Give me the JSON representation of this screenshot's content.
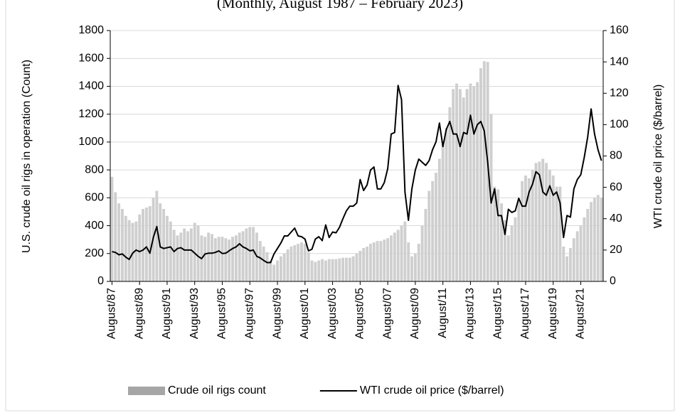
{
  "chart_data": {
    "type": "bar+line",
    "subtitle": "(Monthly, August 1987 – February 2023)",
    "y_label": "U.S. crude oil rigs in operation (Count)",
    "y2_label": "WTI crude oil price ($/barrel)",
    "categories": [
      "August/87",
      null,
      null,
      null,
      null,
      null,
      null,
      null,
      "August/89",
      null,
      null,
      null,
      null,
      null,
      null,
      null,
      "August/91",
      null,
      null,
      null,
      null,
      null,
      null,
      null,
      "August/93",
      null,
      null,
      null,
      null,
      null,
      null,
      null,
      "August/95",
      null,
      null,
      null,
      null,
      null,
      null,
      null,
      "August/97",
      null,
      null,
      null,
      null,
      null,
      null,
      null,
      "August/99",
      null,
      null,
      null,
      null,
      null,
      null,
      null,
      "August/01",
      null,
      null,
      null,
      null,
      null,
      null,
      null,
      "August/03",
      null,
      null,
      null,
      null,
      null,
      null,
      null,
      "August/05",
      null,
      null,
      null,
      null,
      null,
      null,
      null,
      "August/07",
      null,
      null,
      null,
      null,
      null,
      null,
      null,
      "August/09",
      null,
      null,
      null,
      null,
      null,
      null,
      null,
      "August/11",
      null,
      null,
      null,
      null,
      null,
      null,
      null,
      "August/13",
      null,
      null,
      null,
      null,
      null,
      null,
      null,
      "August/15",
      null,
      null,
      null,
      null,
      null,
      null,
      null,
      "August/17",
      null,
      null,
      null,
      null,
      null,
      null,
      null,
      "August/19",
      null,
      null,
      null,
      null,
      null,
      null,
      null,
      "August/21",
      null,
      null,
      null,
      null,
      null,
      null
    ],
    "series": [
      {
        "name": "Crude oil rigs count",
        "type": "bar",
        "color": "#cfcfcf",
        "values": [
          750,
          640,
          560,
          520,
          470,
          440,
          420,
          430,
          480,
          520,
          530,
          540,
          600,
          650,
          560,
          520,
          470,
          430,
          370,
          330,
          350,
          380,
          360,
          380,
          420,
          400,
          330,
          320,
          350,
          340,
          310,
          320,
          320,
          310,
          300,
          320,
          330,
          350,
          360,
          380,
          390,
          390,
          350,
          290,
          250,
          210,
          150,
          120,
          150,
          180,
          200,
          230,
          250,
          260,
          270,
          280,
          270,
          210,
          150,
          140,
          150,
          160,
          150,
          160,
          160,
          160,
          165,
          170,
          170,
          170,
          180,
          200,
          220,
          240,
          250,
          270,
          280,
          290,
          290,
          300,
          310,
          330,
          350,
          370,
          400,
          430,
          280,
          180,
          200,
          270,
          400,
          520,
          650,
          720,
          780,
          880,
          980,
          1100,
          1250,
          1380,
          1420,
          1380,
          1320,
          1380,
          1420,
          1400,
          1430,
          1530,
          1580,
          1575,
          1200,
          680,
          660,
          560,
          440,
          330,
          400,
          460,
          580,
          720,
          760,
          740,
          800,
          850,
          860,
          880,
          850,
          800,
          760,
          680,
          680,
          250,
          180,
          240,
          310,
          360,
          400,
          460,
          520,
          570,
          600,
          620,
          600
        ]
      },
      {
        "name": "WTI crude oil price ($/barrel)",
        "type": "line",
        "axis": "y2",
        "color": "#000000",
        "values": [
          19,
          18.5,
          17,
          17.5,
          15.5,
          14,
          18,
          20,
          19,
          20,
          22,
          18,
          28,
          35,
          22,
          21,
          21.5,
          22,
          19,
          21,
          21.5,
          20,
          20,
          20,
          18,
          16,
          14.5,
          17.5,
          18,
          18,
          18.5,
          19.5,
          17.8,
          18,
          19.5,
          21,
          22,
          24,
          22,
          21,
          19.5,
          20,
          16,
          15,
          13.4,
          12,
          12,
          17.5,
          21,
          24.5,
          29,
          29,
          31.5,
          34,
          29,
          28.5,
          27,
          19.5,
          20.5,
          27,
          28.5,
          26,
          36,
          28,
          31.5,
          31,
          34.5,
          40,
          45,
          48,
          48,
          50,
          65,
          58,
          61.5,
          71,
          73,
          59,
          59,
          63,
          72,
          94,
          95,
          125,
          116,
          57,
          39,
          59,
          71,
          78,
          76,
          74,
          77,
          84,
          89,
          101,
          86,
          97,
          102,
          94,
          94,
          86,
          95,
          94,
          106,
          94,
          100,
          102,
          96,
          76,
          50,
          59,
          42,
          42,
          30,
          46,
          44,
          45,
          53,
          48,
          48,
          57,
          62,
          70,
          68,
          57,
          55,
          61,
          55,
          57,
          50,
          28,
          42,
          41,
          59,
          65,
          68,
          79,
          92,
          110,
          94,
          84,
          77
        ]
      }
    ],
    "ylim": [
      0,
      1800
    ],
    "yticks": [
      0,
      200,
      400,
      600,
      800,
      1000,
      1200,
      1400,
      1600,
      1800
    ],
    "y2lim": [
      0,
      160
    ],
    "y2ticks": [
      0,
      20,
      40,
      60,
      80,
      100,
      120,
      140,
      160
    ],
    "grid": true,
    "legend": "bottom"
  }
}
